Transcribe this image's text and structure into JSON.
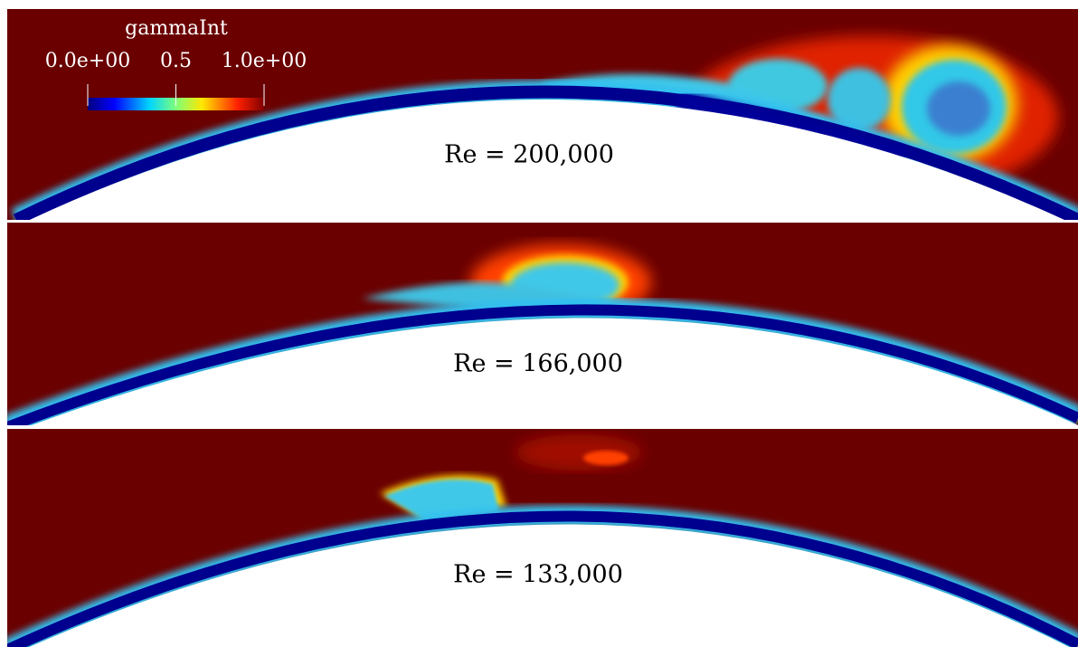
{
  "colorbar": {
    "title": "gammaInt",
    "range": [
      0,
      1
    ],
    "ticks": [
      {
        "value": 0,
        "label": "0.0e+00"
      },
      {
        "value": 0.5,
        "label": "0.5"
      },
      {
        "value": 1,
        "label": "1.0e+00"
      }
    ]
  },
  "panels": [
    {
      "label": "Re = 200,000"
    },
    {
      "label": "Re = 166,000"
    },
    {
      "label": "Re = 133,000"
    }
  ]
}
